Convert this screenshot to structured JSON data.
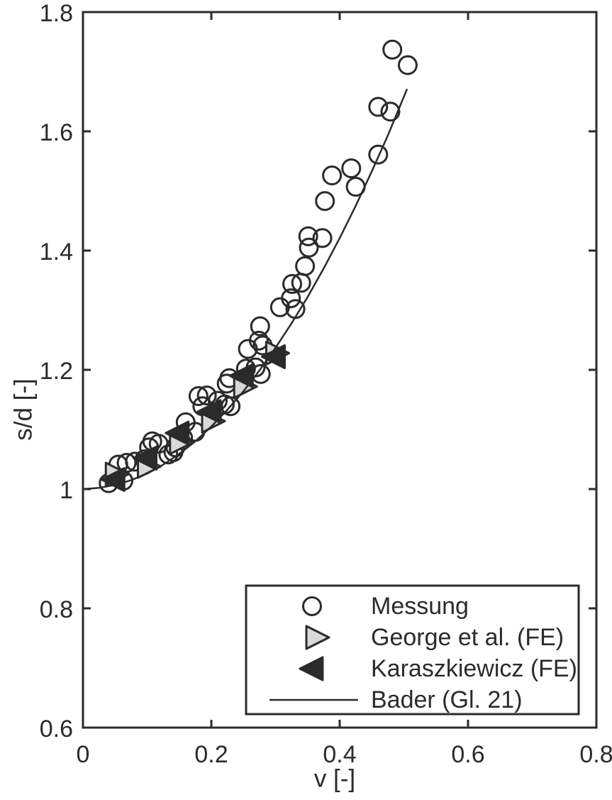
{
  "figure": {
    "background": "#ffffff",
    "ink_color": "#2b2b2b",
    "gray_fill": "#d9d9d9"
  },
  "chart_data": {
    "type": "scatter",
    "title": "",
    "xlabel": "v [-]",
    "ylabel": "s/d [-]",
    "xlim": [
      0,
      0.8
    ],
    "ylim": [
      0.6,
      1.8
    ],
    "x_ticks": [
      0,
      0.2,
      0.4,
      0.6,
      0.8
    ],
    "x_tick_labels": [
      "0",
      "0.2",
      "0.4",
      "0.6",
      "0.8"
    ],
    "y_ticks": [
      0.6,
      0.8,
      1,
      1.2,
      1.4,
      1.6,
      1.8
    ],
    "y_tick_labels": [
      "0.6",
      "0.8",
      "1",
      "1.2",
      "1.4",
      "1.6",
      "1.8"
    ],
    "grid": false,
    "legend_position": "inside lower right",
    "series": [
      {
        "name": "Messung",
        "marker": "circle",
        "fill": "none",
        "points": [
          [
            0.04,
            1.01
          ],
          [
            0.055,
            1.041
          ],
          [
            0.063,
            1.014
          ],
          [
            0.068,
            1.044
          ],
          [
            0.081,
            1.046
          ],
          [
            0.096,
            1.05
          ],
          [
            0.103,
            1.07
          ],
          [
            0.108,
            1.08
          ],
          [
            0.118,
            1.076
          ],
          [
            0.133,
            1.058
          ],
          [
            0.141,
            1.062
          ],
          [
            0.144,
            1.07
          ],
          [
            0.156,
            1.086
          ],
          [
            0.16,
            1.112
          ],
          [
            0.175,
            1.096
          ],
          [
            0.18,
            1.156
          ],
          [
            0.186,
            1.139
          ],
          [
            0.193,
            1.157
          ],
          [
            0.21,
            1.148
          ],
          [
            0.221,
            1.142
          ],
          [
            0.224,
            1.177
          ],
          [
            0.228,
            1.186
          ],
          [
            0.23,
            1.139
          ],
          [
            0.254,
            1.202
          ],
          [
            0.257,
            1.235
          ],
          [
            0.269,
            1.204
          ],
          [
            0.274,
            1.249
          ],
          [
            0.276,
            1.273
          ],
          [
            0.277,
            1.193
          ],
          [
            0.28,
            1.241
          ],
          [
            0.307,
            1.305
          ],
          [
            0.324,
            1.32
          ],
          [
            0.326,
            1.344
          ],
          [
            0.331,
            1.302
          ],
          [
            0.34,
            1.346
          ],
          [
            0.346,
            1.374
          ],
          [
            0.351,
            1.424
          ],
          [
            0.352,
            1.405
          ],
          [
            0.373,
            1.421
          ],
          [
            0.377,
            1.483
          ],
          [
            0.388,
            1.526
          ],
          [
            0.418,
            1.538
          ],
          [
            0.425,
            1.507
          ],
          [
            0.46,
            1.561
          ],
          [
            0.46,
            1.641
          ],
          [
            0.479,
            1.633
          ],
          [
            0.482,
            1.737
          ],
          [
            0.506,
            1.711
          ]
        ]
      },
      {
        "name": "George et al. (FE)",
        "marker": "triangle-right",
        "fill": "#d9d9d9",
        "points": [
          [
            0.05,
            1.025
          ],
          [
            0.1,
            1.038
          ],
          [
            0.15,
            1.078
          ],
          [
            0.2,
            1.114
          ],
          [
            0.25,
            1.172
          ],
          [
            0.3,
            1.228
          ]
        ]
      },
      {
        "name": "Karaszkiewicz (FE)",
        "marker": "triangle-left",
        "fill": "#2b2b2b",
        "points": [
          [
            0.05,
            1.016
          ],
          [
            0.1,
            1.052
          ],
          [
            0.15,
            1.094
          ],
          [
            0.2,
            1.13
          ],
          [
            0.25,
            1.19
          ],
          [
            0.3,
            1.222
          ]
        ]
      },
      {
        "name": "Bader (Gl. 21)",
        "marker": "none",
        "line": true,
        "points": [
          [
            0.0,
            1.0
          ],
          [
            0.025,
            1.002
          ],
          [
            0.05,
            1.007
          ],
          [
            0.075,
            1.015
          ],
          [
            0.1,
            1.026
          ],
          [
            0.125,
            1.041
          ],
          [
            0.15,
            1.059
          ],
          [
            0.175,
            1.08
          ],
          [
            0.2,
            1.105
          ],
          [
            0.225,
            1.133
          ],
          [
            0.25,
            1.164
          ],
          [
            0.275,
            1.199
          ],
          [
            0.3,
            1.237
          ],
          [
            0.325,
            1.278
          ],
          [
            0.35,
            1.322
          ],
          [
            0.375,
            1.37
          ],
          [
            0.4,
            1.421
          ],
          [
            0.425,
            1.475
          ],
          [
            0.45,
            1.533
          ],
          [
            0.475,
            1.593
          ],
          [
            0.505,
            1.671
          ]
        ]
      }
    ]
  }
}
